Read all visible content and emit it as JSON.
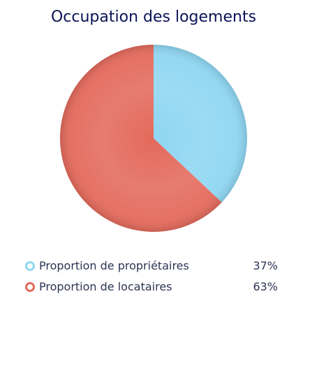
{
  "chart_data": {
    "type": "pie",
    "title": "Occupation des logements",
    "series": [
      {
        "name": "Proportion de propriétaires",
        "value": 37,
        "value_label": "37%",
        "color": "#8fd6f2"
      },
      {
        "name": "Proportion de locataires",
        "value": 63,
        "value_label": "63%",
        "color": "#e36a5c"
      }
    ],
    "legend_position": "bottom"
  }
}
